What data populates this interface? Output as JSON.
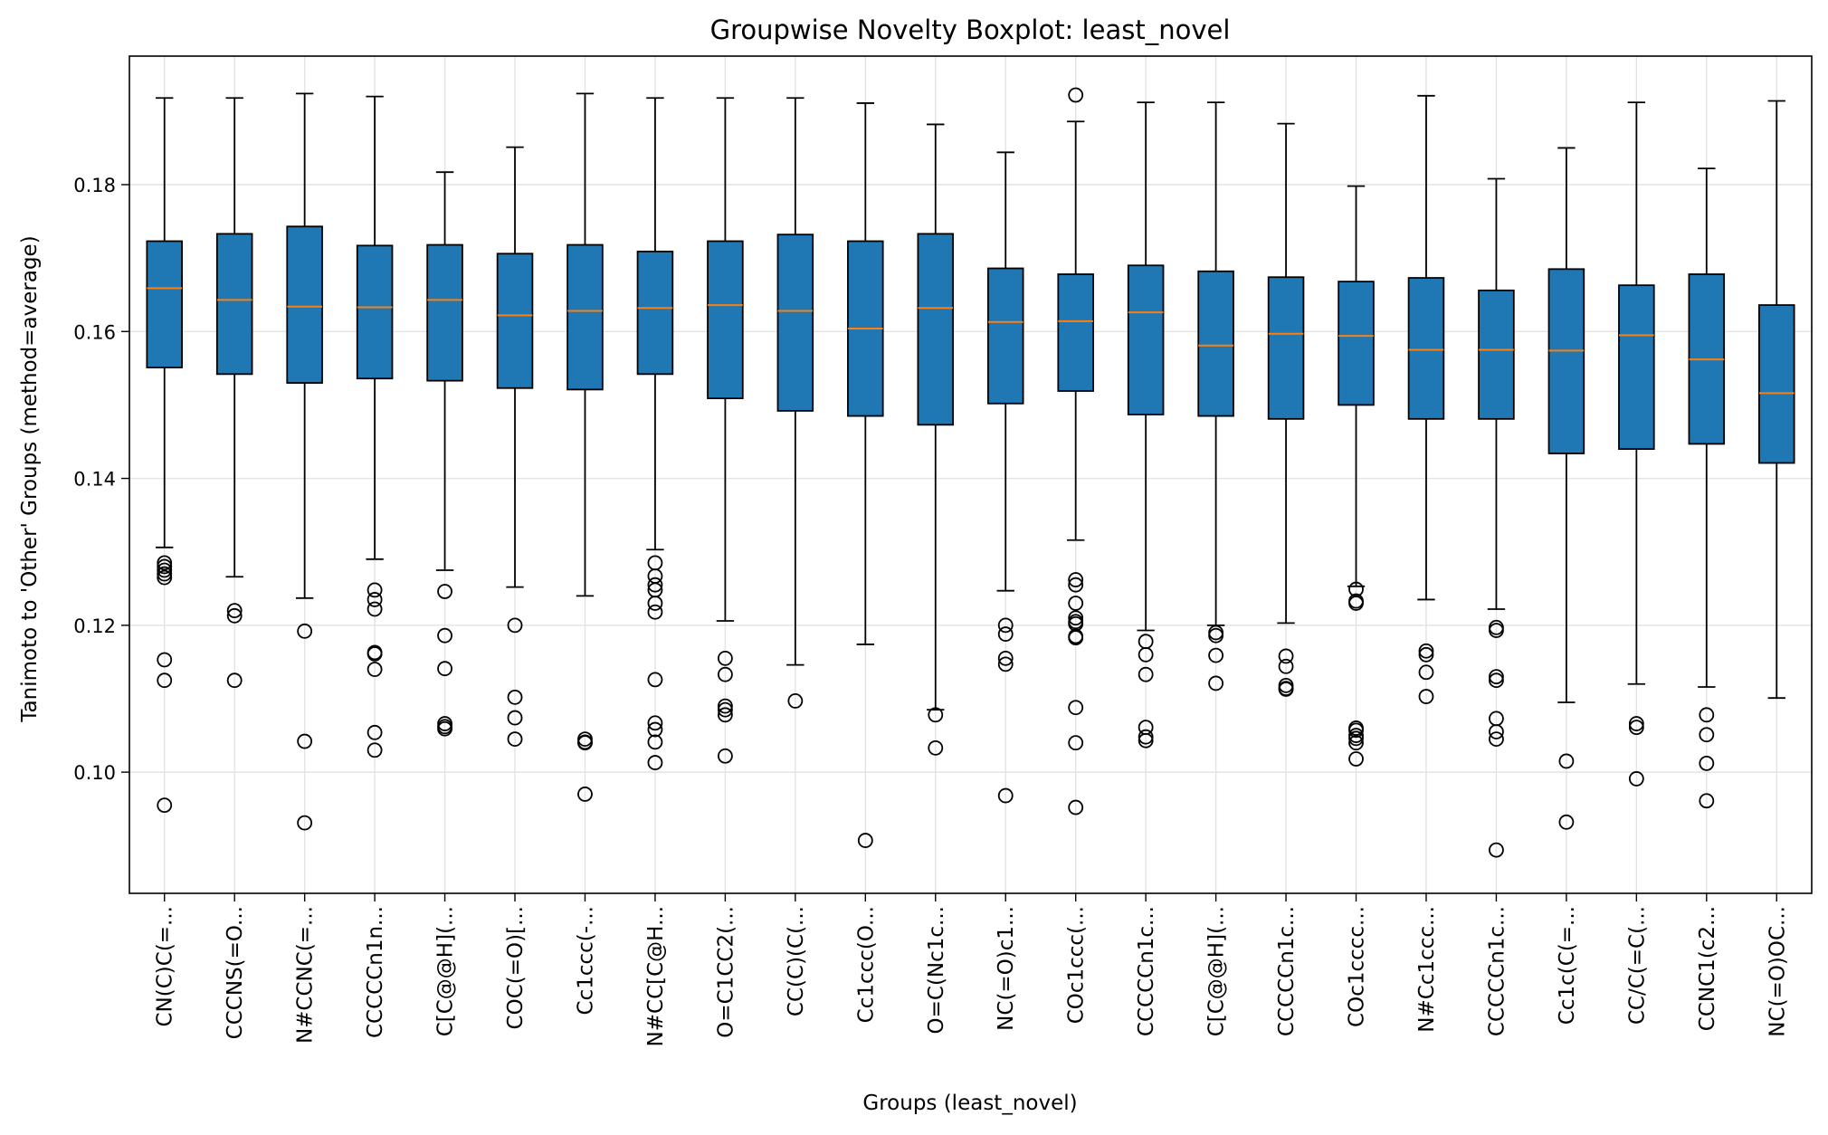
{
  "chart_data": {
    "type": "boxplot",
    "title": "Groupwise Novelty Boxplot: least_novel",
    "xlabel": "Groups (least_novel)",
    "ylabel": "Tanimoto to 'Other' Groups (method=average)",
    "ylim": [
      0.0835,
      0.1975
    ],
    "yticks": [
      0.1,
      0.12,
      0.14,
      0.16,
      0.18
    ],
    "ytick_labels": [
      "0.10",
      "0.12",
      "0.14",
      "0.16",
      "0.18"
    ],
    "grid": true,
    "categories": [
      "CN(C)C(=...",
      "CCCNS(=O...",
      "N#CCNC(=...",
      "CCCCCn1n...",
      "C[C@@H](...",
      "COC(=O)[...",
      "Cc1ccc(-...",
      "N#CC[C@H...",
      "O=C1CC2(...",
      "CC(C)(C(...",
      "Cc1ccc(O...",
      "O=C(Nc1c...",
      "NC(=O)c1...",
      "COc1ccc(...",
      "CCCCCn1c...",
      "C[C@@H](...",
      "CCCCCn1c...",
      "COc1cccc...",
      "N#Cc1ccc...",
      "CCCCCn1c...",
      "Cc1c(C(=...",
      "CC/C(=C(...",
      "CCNC1(c2...",
      "NC(=O)OC..."
    ],
    "boxes": [
      {
        "whislo": 0.1306,
        "q1": 0.1551,
        "median": 0.1659,
        "q3": 0.1723,
        "whishi": 0.1918,
        "fliers": [
          0.1285,
          0.128,
          0.1275,
          0.127,
          0.1265,
          0.1153,
          0.1125,
          0.0955
        ]
      },
      {
        "whislo": 0.1266,
        "q1": 0.1542,
        "median": 0.1643,
        "q3": 0.1733,
        "whishi": 0.1918,
        "fliers": [
          0.122,
          0.1213,
          0.1125
        ]
      },
      {
        "whislo": 0.1237,
        "q1": 0.153,
        "median": 0.1634,
        "q3": 0.1743,
        "whishi": 0.1924,
        "fliers": [
          0.1192,
          0.1042,
          0.0931
        ]
      },
      {
        "whislo": 0.129,
        "q1": 0.1536,
        "median": 0.1633,
        "q3": 0.1717,
        "whishi": 0.192,
        "fliers": [
          0.1248,
          0.1235,
          0.1222,
          0.1163,
          0.1161,
          0.114,
          0.1054,
          0.103
        ]
      },
      {
        "whislo": 0.1275,
        "q1": 0.1533,
        "median": 0.1643,
        "q3": 0.1718,
        "whishi": 0.1817,
        "fliers": [
          0.1246,
          0.1186,
          0.1141,
          0.1066,
          0.1062,
          0.1059
        ]
      },
      {
        "whislo": 0.1252,
        "q1": 0.1523,
        "median": 0.1622,
        "q3": 0.1706,
        "whishi": 0.1851,
        "fliers": [
          0.12,
          0.1102,
          0.1074,
          0.1045
        ]
      },
      {
        "whislo": 0.124,
        "q1": 0.1521,
        "median": 0.1628,
        "q3": 0.1718,
        "whishi": 0.1924,
        "fliers": [
          0.1045,
          0.1041,
          0.104,
          0.097
        ]
      },
      {
        "whislo": 0.1303,
        "q1": 0.1542,
        "median": 0.1632,
        "q3": 0.1709,
        "whishi": 0.1918,
        "fliers": [
          0.1285,
          0.1267,
          0.1255,
          0.1248,
          0.123,
          0.1218,
          0.1126,
          0.1067,
          0.1058,
          0.1041,
          0.1013
        ]
      },
      {
        "whislo": 0.1206,
        "q1": 0.1509,
        "median": 0.1636,
        "q3": 0.1723,
        "whishi": 0.1918,
        "fliers": [
          0.1155,
          0.1133,
          0.109,
          0.1085,
          0.1078,
          0.1022
        ]
      },
      {
        "whislo": 0.1146,
        "q1": 0.1492,
        "median": 0.1628,
        "q3": 0.1732,
        "whishi": 0.1918,
        "fliers": [
          0.1097
        ]
      },
      {
        "whislo": 0.1174,
        "q1": 0.1485,
        "median": 0.1604,
        "q3": 0.1723,
        "whishi": 0.1911,
        "fliers": [
          0.0907
        ]
      },
      {
        "whislo": 0.1085,
        "q1": 0.1473,
        "median": 0.1632,
        "q3": 0.1733,
        "whishi": 0.1882,
        "fliers": [
          0.1078,
          0.1033
        ]
      },
      {
        "whislo": 0.1247,
        "q1": 0.1502,
        "median": 0.1613,
        "q3": 0.1686,
        "whishi": 0.1844,
        "fliers": [
          0.12,
          0.1188,
          0.1155,
          0.1147,
          0.0968
        ]
      },
      {
        "whislo": 0.1316,
        "q1": 0.1519,
        "median": 0.1614,
        "q3": 0.1678,
        "whishi": 0.1886,
        "fliers": [
          0.1922,
          0.1262,
          0.1255,
          0.123,
          0.121,
          0.1205,
          0.1202,
          0.1185,
          0.1183,
          0.1088,
          0.104,
          0.0952
        ]
      },
      {
        "whislo": 0.1193,
        "q1": 0.1487,
        "median": 0.1626,
        "q3": 0.169,
        "whishi": 0.1912,
        "fliers": [
          0.1178,
          0.116,
          0.1133,
          0.1061,
          0.1048,
          0.1043
        ]
      },
      {
        "whislo": 0.12,
        "q1": 0.1485,
        "median": 0.1581,
        "q3": 0.1682,
        "whishi": 0.1912,
        "fliers": [
          0.119,
          0.1186,
          0.1159,
          0.1121
        ]
      },
      {
        "whislo": 0.1203,
        "q1": 0.1481,
        "median": 0.1597,
        "q3": 0.1674,
        "whishi": 0.1883,
        "fliers": [
          0.1158,
          0.1144,
          0.1118,
          0.1114,
          0.1113
        ]
      },
      {
        "whislo": 0.1253,
        "q1": 0.15,
        "median": 0.1594,
        "q3": 0.1668,
        "whishi": 0.1798,
        "fliers": [
          0.1249,
          0.1233,
          0.123,
          0.106,
          0.1057,
          0.105,
          0.1046,
          0.104,
          0.1018
        ]
      },
      {
        "whislo": 0.1235,
        "q1": 0.1481,
        "median": 0.1575,
        "q3": 0.1673,
        "whishi": 0.1921,
        "fliers": [
          0.1165,
          0.116,
          0.1136,
          0.1103
        ]
      },
      {
        "whislo": 0.1222,
        "q1": 0.1481,
        "median": 0.1575,
        "q3": 0.1656,
        "whishi": 0.1808,
        "fliers": [
          0.1197,
          0.1193,
          0.113,
          0.1125,
          0.1073,
          0.1055,
          0.1045,
          0.0894
        ]
      },
      {
        "whislo": 0.1095,
        "q1": 0.1434,
        "median": 0.1574,
        "q3": 0.1685,
        "whishi": 0.185,
        "fliers": [
          0.1015,
          0.0932
        ]
      },
      {
        "whislo": 0.112,
        "q1": 0.144,
        "median": 0.1595,
        "q3": 0.1663,
        "whishi": 0.1912,
        "fliers": [
          0.1066,
          0.1061,
          0.0991
        ]
      },
      {
        "whislo": 0.1116,
        "q1": 0.1447,
        "median": 0.1562,
        "q3": 0.1678,
        "whishi": 0.1822,
        "fliers": [
          0.1078,
          0.1051,
          0.1012,
          0.0961
        ]
      },
      {
        "whislo": 0.1101,
        "q1": 0.1421,
        "median": 0.1516,
        "q3": 0.1636,
        "whishi": 0.1914,
        "fliers": []
      }
    ],
    "colors": {
      "box_fill": "#1f77b4",
      "median": "#ff7f0e",
      "grid": "#e3e3e3",
      "edge": "#000000"
    }
  }
}
